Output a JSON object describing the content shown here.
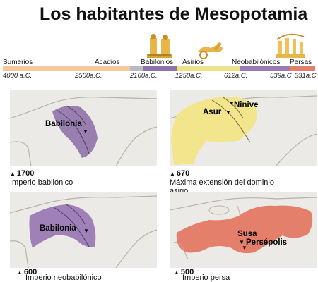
{
  "title": "Los habitantes de Mesopotamia",
  "timeline": {
    "periods": [
      {
        "name": "Sumerios",
        "color": "#f5c89c"
      },
      {
        "name": "Acadios",
        "color": "#b9b9c7"
      },
      {
        "name": "Babilonios",
        "color": "#8f73a8"
      },
      {
        "name": "Asirios",
        "color": "#efe08a"
      },
      {
        "name": "Neobabilónicos",
        "color": "#9b7bb4"
      },
      {
        "name": "Persas",
        "color": "#e47f6b"
      }
    ],
    "dates": [
      "4000 a.C.",
      "2500a.C.",
      "2100a.C.",
      "1250a.C.",
      "612a.C.",
      "539a.C",
      "331a.C"
    ]
  },
  "maps": [
    {
      "year": "1700",
      "label": "Imperio babilónico",
      "places": [
        "Babilonia"
      ],
      "color": "#8f73a8"
    },
    {
      "year": "670",
      "label": "Máxima extensión del dominio asirio",
      "places": [
        "Asur",
        "Ninive"
      ],
      "color": "#f2e58c"
    },
    {
      "year": "600",
      "label": "Imperio neobabilónico",
      "places": [
        "Babilonia"
      ],
      "color": "#9b7bb4"
    },
    {
      "year": "500",
      "label": "Imperio persa",
      "places": [
        "Susa",
        "Persépolis"
      ],
      "color": "#e47f6b"
    }
  ]
}
